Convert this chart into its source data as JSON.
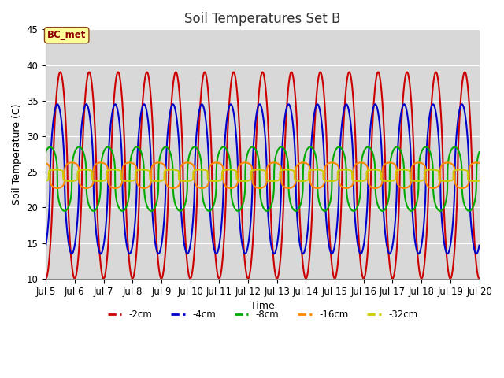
{
  "title": "Soil Temperatures Set B",
  "xlabel": "Time",
  "ylabel": "Soil Temperature (C)",
  "ylim": [
    10,
    45
  ],
  "xlim_days": [
    5,
    20
  ],
  "annotation": "BC_met",
  "bg_color": "#d8d8d8",
  "series": [
    {
      "label": "-2cm",
      "color": "#cc0000",
      "lw": 1.5
    },
    {
      "label": "-4cm",
      "color": "#0000cc",
      "lw": 1.5
    },
    {
      "label": "-8cm",
      "color": "#00aa00",
      "lw": 1.5
    },
    {
      "label": "-16cm",
      "color": "#ff8800",
      "lw": 1.5
    },
    {
      "label": "-32cm",
      "color": "#cccc00",
      "lw": 1.5
    }
  ],
  "xtick_labels": [
    "Jul 5",
    "Jul 6",
    "Jul 7",
    "Jul 8",
    "Jul 9",
    "Jul 10",
    "Jul 11",
    "Jul 12",
    "Jul 13",
    "Jul 14",
    "Jul 15",
    "Jul 16",
    "Jul 17",
    "Jul 18",
    "Jul 19",
    "Jul 20"
  ],
  "xtick_positions": [
    5,
    6,
    7,
    8,
    9,
    10,
    11,
    12,
    13,
    14,
    15,
    16,
    17,
    18,
    19,
    20
  ]
}
